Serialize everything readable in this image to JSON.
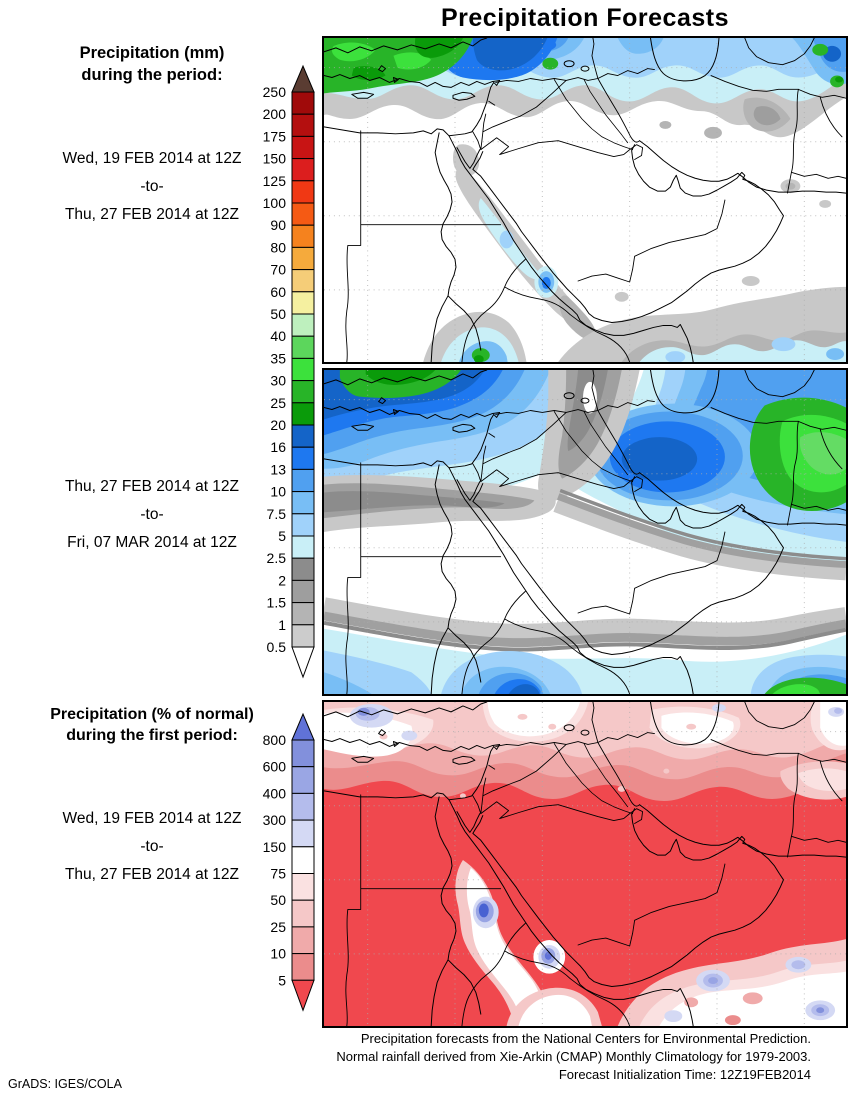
{
  "title": "Precipitation Forecasts",
  "panels": [
    {
      "header1": "Precipitation (mm)",
      "header2": "during the period:",
      "date_from": "Wed, 19 FEB 2014 at 12Z",
      "to": "-to-",
      "date_to": "Thu, 27 FEB 2014 at 12Z"
    },
    {
      "date_from": "Thu, 27 FEB 2014 at 12Z",
      "to": "-to-",
      "date_to": "Fri, 07 MAR 2014 at 12Z"
    },
    {
      "header1": "Precipitation (% of normal)",
      "header2": "during the first period:",
      "date_from": "Wed, 19 FEB 2014 at 12Z",
      "to": "-to-",
      "date_to": "Thu, 27 FEB 2014 at 12Z"
    }
  ],
  "colorbars": {
    "mm": {
      "labels": [
        "250",
        "200",
        "175",
        "150",
        "125",
        "100",
        "90",
        "80",
        "70",
        "60",
        "50",
        "40",
        "35",
        "30",
        "25",
        "20",
        "16",
        "13",
        "10",
        "7.5",
        "5",
        "2.5",
        "2",
        "1.5",
        "1",
        "0.5"
      ],
      "cell_colors": [
        "#A00A0A",
        "#B40F0F",
        "#C81414",
        "#DC1E1E",
        "#F03814",
        "#F55A14",
        "#F5821E",
        "#F5AA3C",
        "#F5CD78",
        "#F5F0A0",
        "#BEF0BE",
        "#5CD65C",
        "#3CE13C",
        "#28B428",
        "#0A9B0A",
        "#1464C8",
        "#1E78F0",
        "#50A0F0",
        "#78BEF5",
        "#A0D2FA",
        "#C9EFF7",
        "#8C8C8C",
        "#9E9E9E",
        "#B4B4B4",
        "#CCCCCC"
      ],
      "top_arrow_color": "#5A3C32",
      "bottom_arrow_color": "#FFFFFF"
    },
    "pct": {
      "labels": [
        "800",
        "600",
        "400",
        "300",
        "150",
        "75",
        "50",
        "25",
        "10",
        "5"
      ],
      "cell_colors": [
        "#8290DC",
        "#9AA6E4",
        "#B4BCEC",
        "#D4D9F4",
        "#FFFFFF",
        "#FAE1E1",
        "#F5C8C8",
        "#F0AAAA",
        "#EB8C8C"
      ],
      "top_arrow_color": "#6072D8",
      "bottom_arrow_color": "#F0484E"
    }
  },
  "footer": {
    "line1": "Precipitation forecasts from the National Centers for Environmental Prediction.",
    "line2": "Normal rainfall derived from Xie-Arkin (CMAP) Monthly Climatology for 1979-2003.",
    "line3": "Forecast Initialization Time: 12Z19FEB2014",
    "credit": "GrADS: IGES/COLA"
  },
  "chart_data": [
    {
      "type": "heatmap",
      "subtype": "filled-contour-forecast-map",
      "title": "Precipitation (mm), Wed 19 FEB 2014 12Z to Thu 27 FEB 2014 12Z",
      "region": "North Africa / Middle East / Arabian Peninsula",
      "units": "mm",
      "levels": [
        0.5,
        1,
        1.5,
        2,
        2.5,
        5,
        7.5,
        10,
        13,
        16,
        20,
        25,
        30,
        35,
        40,
        50,
        60,
        70,
        80,
        90,
        100,
        125,
        150,
        175,
        200,
        250
      ],
      "legend_position": "left",
      "summary": "Patchy 2.5-25 mm band across Turkey, the eastern Mediterranean and the Caspian with 20-40 mm maxima over western Turkey and far north-east; under 0.5 mm over Egypt, Sudan and central Arabia; 0.5-16 mm locally along the Red Sea trough; 0.5-10 mm band with embedded 20-30 mm spots across the Arabian Sea in the south-east."
    },
    {
      "type": "heatmap",
      "subtype": "filled-contour-forecast-map",
      "title": "Precipitation (mm), Thu 27 FEB 2014 12Z to Fri 07 MAR 2014 12Z",
      "region": "North Africa / Middle East / Arabian Peninsula",
      "units": "mm",
      "levels": [
        0.5,
        1,
        1.5,
        2,
        2.5,
        5,
        7.5,
        10,
        13,
        16,
        20,
        25,
        30,
        35,
        40,
        50,
        60,
        70,
        80,
        90,
        100,
        125,
        150,
        175,
        200,
        250
      ],
      "legend_position": "left",
      "summary": "Smooth broad bands: 20-35 mm center over north-west Turkey; 5-16 mm band from the Levant across Iran; 25-40 mm maximum over Afghanistan; dry (<0.5 mm) central Arabia, Egypt and Sudan; 13-20 mm center near the southern Red Sea / Ethiopia; 20-35 mm in the far south-east corner."
    },
    {
      "type": "heatmap",
      "subtype": "filled-contour-forecast-map",
      "title": "Precipitation (% of normal), Wed 19 FEB 2014 12Z to Thu 27 FEB 2014 12Z",
      "region": "North Africa / Middle East / Arabian Peninsula",
      "units": "% of normal",
      "levels": [
        5,
        10,
        25,
        50,
        75,
        150,
        300,
        400,
        600,
        800
      ],
      "legend_position": "left",
      "summary": "Below 5% of normal (solid red) over nearly the whole domain; 10-150% of normal along Turkey, the Levant coast and the Caspian; isolated above-normal (300-800%, blue) spots along the Nile, the southern Red Sea and over the Arabian Sea in the south-east."
    }
  ]
}
